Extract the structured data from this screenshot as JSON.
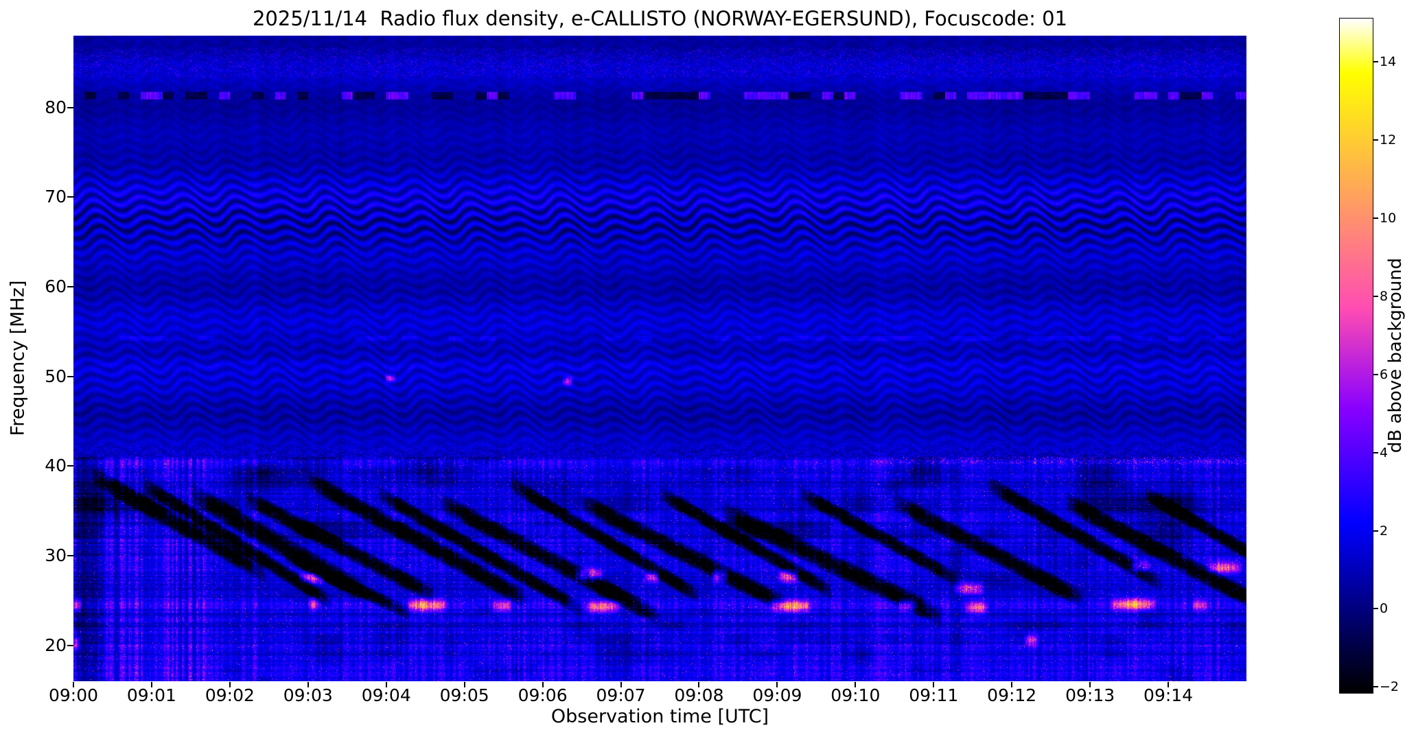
{
  "title": "2025/11/14  Radio flux density, e-CALLISTO (NORWAY-EGERSUND), Focuscode: 01",
  "xlabel": "Observation time [UTC]",
  "ylabel": "Frequency [MHz]",
  "colorbar_label": "dB above background",
  "chart_data": {
    "type": "heatmap",
    "title": "2025/11/14  Radio flux density, e-CALLISTO (NORWAY-EGERSUND), Focuscode: 01",
    "x": {
      "label": "Observation time [UTC]",
      "start": "09:00",
      "end": "09:15",
      "minutes": 15,
      "tick_labels": [
        "09:00",
        "09:01",
        "09:02",
        "09:03",
        "09:04",
        "09:05",
        "09:06",
        "09:07",
        "09:08",
        "09:09",
        "09:10",
        "09:11",
        "09:12",
        "09:13",
        "09:14"
      ]
    },
    "y": {
      "label": "Frequency [MHz]",
      "min": 16,
      "max": 88,
      "ticks": [
        20,
        30,
        40,
        50,
        60,
        70,
        80
      ]
    },
    "z": {
      "label": "dB above background",
      "min": -2,
      "max": 15,
      "colormap": "gnuplot2",
      "colorbar_ticks": [
        -2,
        0,
        2,
        4,
        6,
        8,
        10,
        12,
        14
      ]
    },
    "background_level_db": 1,
    "features": {
      "fringe_bands_mhz": [
        [
          62,
          74
        ],
        [
          47,
          54
        ],
        [
          55,
          60
        ],
        [
          43,
          47
        ]
      ],
      "carrier_line_mhz": 81.3,
      "noisy_band_below_mhz": 41,
      "bursts": [
        {
          "t": [
            0.0,
            0.1
          ],
          "f": 24.5,
          "peak": 8
        },
        {
          "t": [
            0.0,
            0.08
          ],
          "f": 20.3,
          "peak": 7
        },
        {
          "t": [
            2.88,
            3.22
          ],
          "f": 27.6,
          "peak": 9
        },
        {
          "t": [
            3.0,
            3.15
          ],
          "f": 24.6,
          "peak": 7
        },
        {
          "t": [
            4.25,
            4.8
          ],
          "f": 24.5,
          "peak": 12
        },
        {
          "t": [
            5.35,
            5.6
          ],
          "f": 24.4,
          "peak": 8
        },
        {
          "t": [
            6.4,
            6.78
          ],
          "f": 27.9,
          "peak": 10
        },
        {
          "t": [
            6.55,
            7.0
          ],
          "f": 24.3,
          "peak": 11
        },
        {
          "t": [
            7.3,
            7.5
          ],
          "f": 27.7,
          "peak": 8
        },
        {
          "t": [
            8.15,
            8.38
          ],
          "f": 27.8,
          "peak": 9
        },
        {
          "t": [
            8.9,
            9.45
          ],
          "f": 24.4,
          "peak": 12
        },
        {
          "t": [
            9.0,
            9.28
          ],
          "f": 27.7,
          "peak": 10
        },
        {
          "t": [
            10.55,
            10.8
          ],
          "f": 24.5,
          "peak": 8
        },
        {
          "t": [
            11.25,
            11.65
          ],
          "f": 26.4,
          "peak": 10
        },
        {
          "t": [
            11.4,
            11.7
          ],
          "f": 24.2,
          "peak": 9
        },
        {
          "t": [
            12.15,
            12.35
          ],
          "f": 20.6,
          "peak": 8
        },
        {
          "t": [
            13.25,
            13.85
          ],
          "f": 24.6,
          "peak": 12
        },
        {
          "t": [
            13.5,
            13.78
          ],
          "f": 28.8,
          "peak": 8
        },
        {
          "t": [
            14.5,
            14.95
          ],
          "f": 28.7,
          "peak": 10
        },
        {
          "t": [
            14.3,
            14.5
          ],
          "f": 24.5,
          "peak": 7
        }
      ],
      "point_events": [
        {
          "t": 4.05,
          "f": 49.8,
          "peak": 7
        },
        {
          "t": 6.32,
          "f": 49.5,
          "peak": 8
        }
      ],
      "dark_streaks": [
        {
          "t_start": 0.25,
          "f_start": 39,
          "slope": 5.0,
          "duration": 2.2,
          "width": 1.2
        },
        {
          "t_start": 0.9,
          "f_start": 38,
          "slope": 5.5,
          "duration": 2.4,
          "width": 1.0
        },
        {
          "t_start": 1.5,
          "f_start": 37,
          "slope": 5.0,
          "duration": 2.2,
          "width": 1.4
        },
        {
          "t_start": 2.2,
          "f_start": 36.5,
          "slope": 4.5,
          "duration": 2.4,
          "width": 1.1
        },
        {
          "t_start": 2.7,
          "f_start": 30,
          "slope": 4.0,
          "duration": 1.6,
          "width": 0.9
        },
        {
          "t_start": 3.0,
          "f_start": 38.5,
          "slope": 4.8,
          "duration": 2.8,
          "width": 1.2
        },
        {
          "t_start": 3.9,
          "f_start": 37,
          "slope": 5.0,
          "duration": 2.6,
          "width": 1.0
        },
        {
          "t_start": 4.7,
          "f_start": 36,
          "slope": 4.6,
          "duration": 2.8,
          "width": 1.2
        },
        {
          "t_start": 5.6,
          "f_start": 38,
          "slope": 5.2,
          "duration": 2.4,
          "width": 1.0
        },
        {
          "t_start": 6.5,
          "f_start": 36,
          "slope": 4.4,
          "duration": 2.6,
          "width": 1.2
        },
        {
          "t_start": 7.5,
          "f_start": 37,
          "slope": 5.0,
          "duration": 2.2,
          "width": 1.0
        },
        {
          "t_start": 8.3,
          "f_start": 35,
          "slope": 4.2,
          "duration": 2.8,
          "width": 1.3
        },
        {
          "t_start": 9.3,
          "f_start": 37,
          "slope": 4.8,
          "duration": 2.0,
          "width": 1.0
        },
        {
          "t_start": 10.5,
          "f_start": 36,
          "slope": 4.5,
          "duration": 2.4,
          "width": 1.2
        },
        {
          "t_start": 11.7,
          "f_start": 38,
          "slope": 5.0,
          "duration": 2.2,
          "width": 1.1
        },
        {
          "t_start": 12.7,
          "f_start": 36,
          "slope": 4.6,
          "duration": 2.6,
          "width": 1.2
        },
        {
          "t_start": 13.7,
          "f_start": 37,
          "slope": 5.0,
          "duration": 2.2,
          "width": 1.0
        }
      ]
    }
  }
}
